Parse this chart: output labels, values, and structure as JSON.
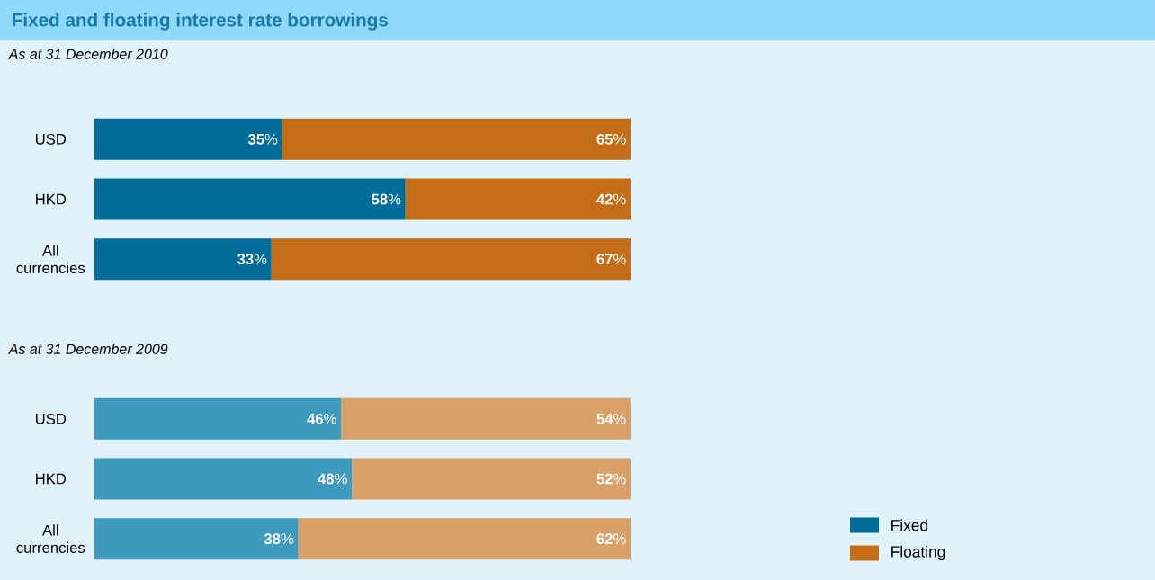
{
  "chart_data": [
    {
      "type": "bar",
      "orientation": "horizontal",
      "stacked": true,
      "title": "Fixed and floating interest rate borrowings",
      "subtitle": "As at 31 December 2010",
      "categories": [
        "USD",
        "HKD",
        "All currencies"
      ],
      "xlim": [
        0,
        100
      ],
      "legend": "bottom right",
      "series": [
        {
          "name": "Fixed",
          "color": "#006c9a",
          "values": [
            35,
            58,
            33
          ],
          "value_labels": [
            "**35**%",
            "**58**%",
            "**33**%"
          ]
        },
        {
          "name": "Floating",
          "color": "#c46c16",
          "values": [
            65,
            42,
            67
          ],
          "value_labels": [
            "**65**%",
            "**42**%",
            "**67**%"
          ]
        }
      ]
    },
    {
      "type": "bar",
      "orientation": "horizontal",
      "stacked": true,
      "subtitle": "As at 31 December 2009",
      "categories": [
        "USD",
        "HKD",
        "All currencies"
      ],
      "xlim": [
        0,
        100
      ],
      "series": [
        {
          "color": "#3f9ac0",
          "values": [
            46,
            48,
            38
          ],
          "value_labels": [
            "**46**%",
            "**48**%",
            "**38**%"
          ]
        },
        {
          "color": "#d9a067",
          "values": [
            54,
            52,
            62
          ],
          "value_labels": [
            "**54**%",
            "**52**%",
            "**62**%"
          ]
        }
      ]
    }
  ]
}
